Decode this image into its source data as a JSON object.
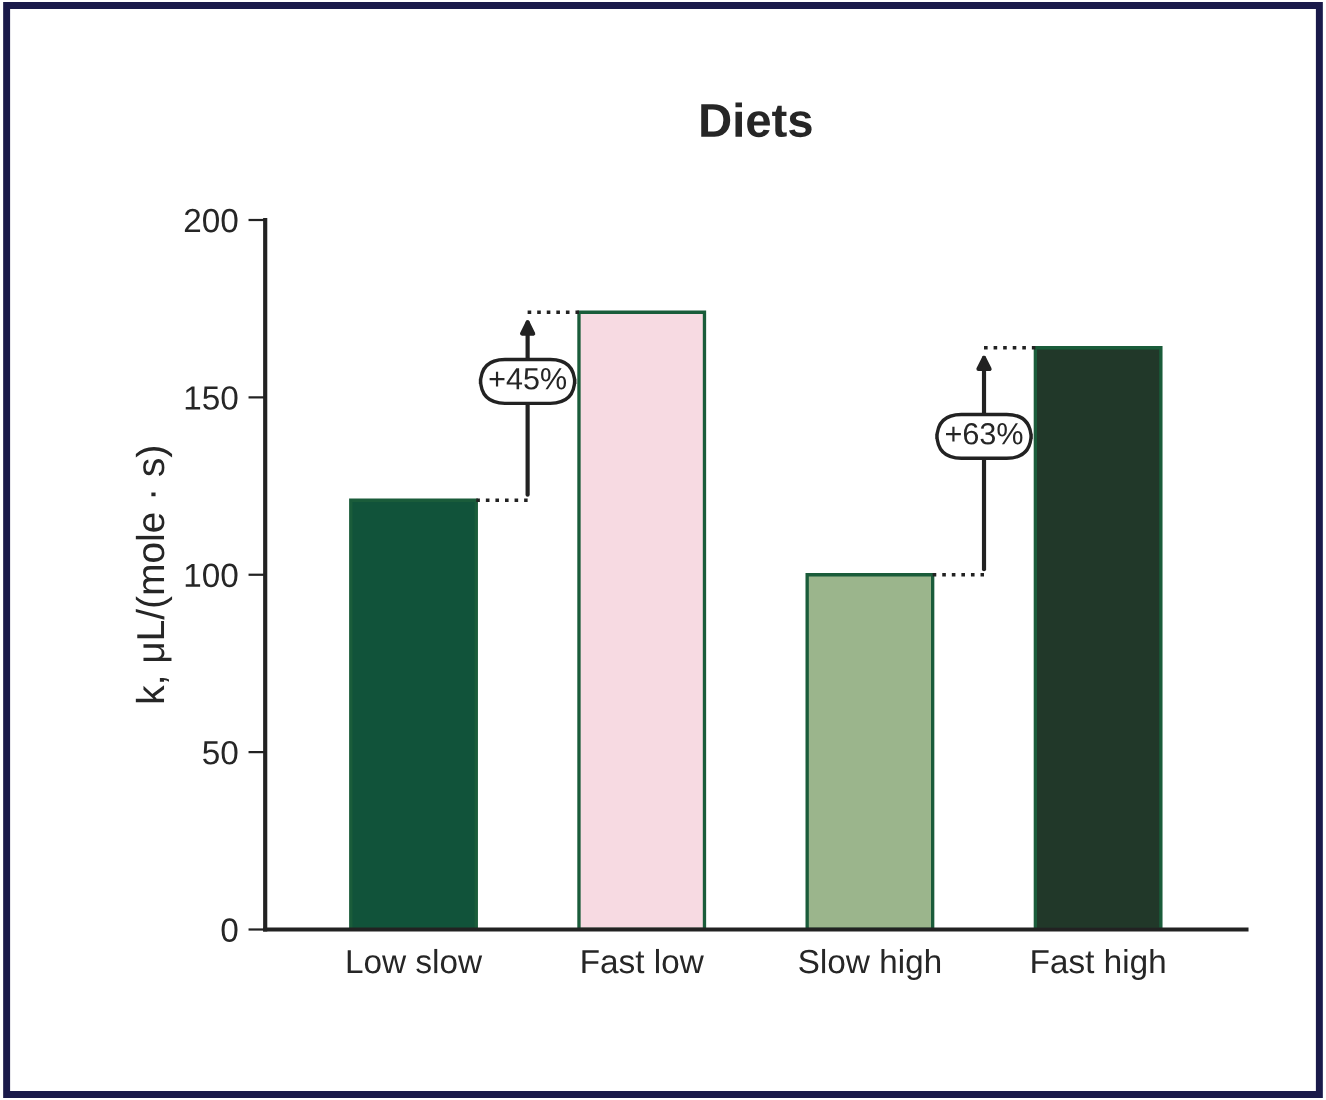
{
  "chart_data": {
    "type": "bar",
    "title": "Diets",
    "ylabel": "k, μL/(mole · s)",
    "categories": [
      "Low slow",
      "Fast low",
      "Slow high",
      "Fast high"
    ],
    "values": [
      121,
      174,
      100,
      164
    ],
    "colors": [
      "#11533a",
      "#f7dae2",
      "#9bb58c",
      "#213829"
    ],
    "ylim": [
      0,
      200
    ],
    "yticks": [
      0,
      50,
      100,
      150,
      200
    ],
    "grid": false,
    "annotations": [
      "+45%",
      "+63%"
    ]
  }
}
